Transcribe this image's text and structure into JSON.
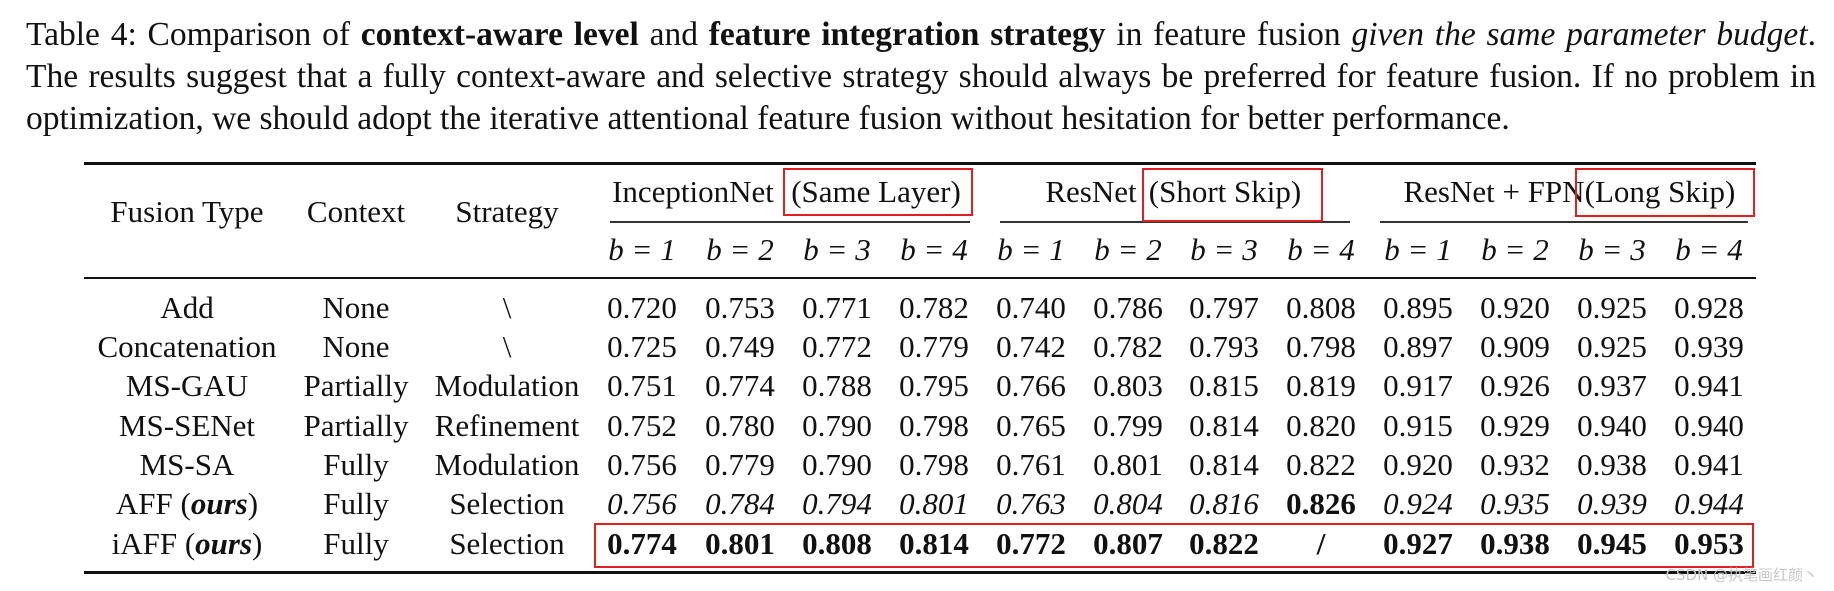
{
  "caption": {
    "part1": "Table 4: Comparison of ",
    "bold1": "context-aware level",
    "part2": " and ",
    "bold2": "feature integration strategy",
    "part3": " in feature fusion ",
    "italic1": "given the same parameter budget",
    "part4": ". The results suggest that a fully context-aware and selective strategy should always be preferred for feature fusion. If no problem in optimization, we should adopt the iterative attentional feature fusion without hesitation for better performance."
  },
  "headers": {
    "fusion_type": "Fusion Type",
    "context": "Context",
    "strategy": "Strategy",
    "groups": [
      {
        "name": "InceptionNet",
        "boxed": "(Same Layer)"
      },
      {
        "name": "ResNet",
        "boxed": "(Short Skip)"
      },
      {
        "name": "ResNet + FPN",
        "boxed": "(Long Skip)"
      }
    ],
    "b_labels": [
      "b = 1",
      "b = 2",
      "b = 3",
      "b = 4"
    ]
  },
  "rows": [
    {
      "type": "Add",
      "context": "None",
      "strategy": "\\",
      "values": [
        "0.720",
        "0.753",
        "0.771",
        "0.782",
        "0.740",
        "0.786",
        "0.797",
        "0.808",
        "0.895",
        "0.920",
        "0.925",
        "0.928"
      ]
    },
    {
      "type": "Concatenation",
      "context": "None",
      "strategy": "\\",
      "values": [
        "0.725",
        "0.749",
        "0.772",
        "0.779",
        "0.742",
        "0.782",
        "0.793",
        "0.798",
        "0.897",
        "0.909",
        "0.925",
        "0.939"
      ]
    },
    {
      "type": "MS-GAU",
      "context": "Partially",
      "strategy": "Modulation",
      "values": [
        "0.751",
        "0.774",
        "0.788",
        "0.795",
        "0.766",
        "0.803",
        "0.815",
        "0.819",
        "0.917",
        "0.926",
        "0.937",
        "0.941"
      ]
    },
    {
      "type": "MS-SENet",
      "context": "Partially",
      "strategy": "Refinement",
      "values": [
        "0.752",
        "0.780",
        "0.790",
        "0.798",
        "0.765",
        "0.799",
        "0.814",
        "0.820",
        "0.915",
        "0.929",
        "0.940",
        "0.940"
      ]
    },
    {
      "type": "MS-SA",
      "context": "Fully",
      "strategy": "Modulation",
      "values": [
        "0.756",
        "0.779",
        "0.790",
        "0.798",
        "0.761",
        "0.801",
        "0.814",
        "0.822",
        "0.920",
        "0.932",
        "0.938",
        "0.941"
      ]
    },
    {
      "type": "AFF",
      "ours": "ours",
      "context": "Fully",
      "strategy": "Selection",
      "values": [
        "0.756",
        "0.784",
        "0.794",
        "0.801",
        "0.763",
        "0.804",
        "0.816",
        "0.826",
        "0.924",
        "0.935",
        "0.939",
        "0.944"
      ]
    },
    {
      "type": "iAFF",
      "ours": "ours",
      "context": "Fully",
      "strategy": "Selection",
      "values": [
        "0.774",
        "0.801",
        "0.808",
        "0.814",
        "0.772",
        "0.807",
        "0.822",
        "/",
        "0.927",
        "0.938",
        "0.945",
        "0.953"
      ]
    }
  ],
  "watermark": "CSDN @执笔画红颜丶"
}
